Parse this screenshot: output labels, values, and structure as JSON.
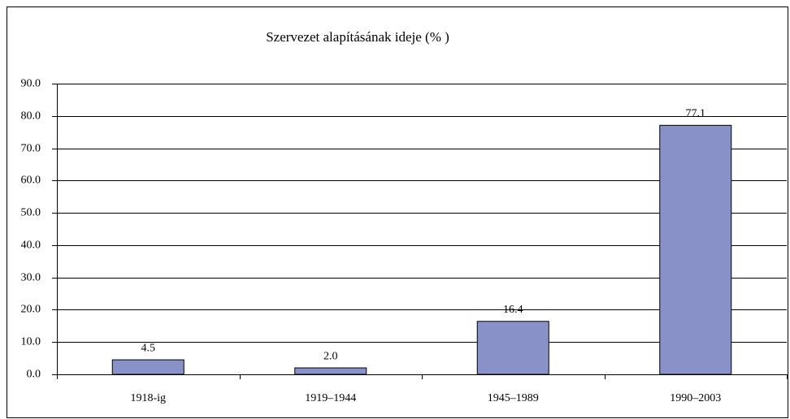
{
  "chart_data": {
    "type": "bar",
    "title": "Szervezet alapításának ideje (% )",
    "categories": [
      "1918-ig",
      "1919–1944",
      "1945–1989",
      "1990–2003"
    ],
    "values": [
      4.5,
      2.0,
      16.4,
      77.1
    ],
    "value_labels": [
      "4.5",
      "2.0",
      "16.4",
      "77.1"
    ],
    "color": "#8891c8",
    "ylim": [
      0,
      90
    ],
    "yticks": [
      {
        "value": 0,
        "label": "0.0"
      },
      {
        "value": 10,
        "label": "10.0"
      },
      {
        "value": 20,
        "label": "20.0"
      },
      {
        "value": 30,
        "label": "30.0"
      },
      {
        "value": 40,
        "label": "40.0"
      },
      {
        "value": 50,
        "label": "50.0"
      },
      {
        "value": 60,
        "label": "60.0"
      },
      {
        "value": 70,
        "label": "70.0"
      },
      {
        "value": 80,
        "label": "80.0"
      },
      {
        "value": 90,
        "label": "90.0"
      }
    ],
    "grid": true
  }
}
